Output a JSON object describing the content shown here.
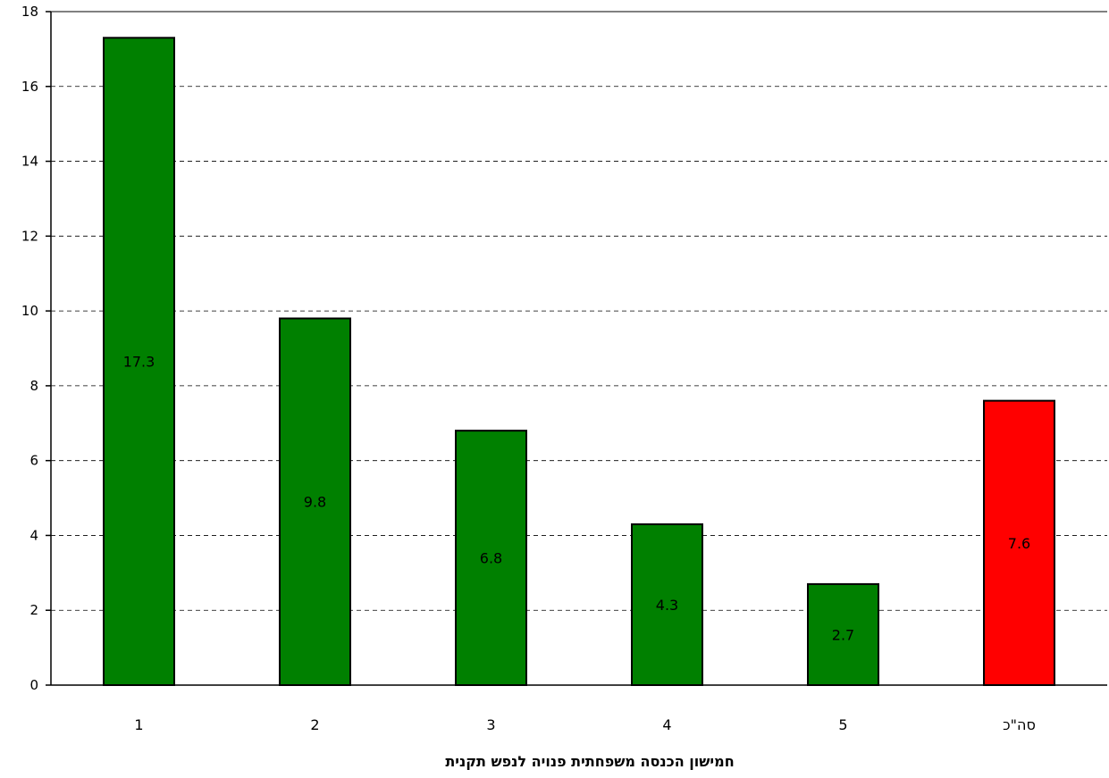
{
  "chart_data": {
    "type": "bar",
    "categories": [
      "1",
      "2",
      "3",
      "4",
      "5",
      "סה\"כ"
    ],
    "values": [
      17.3,
      9.8,
      6.8,
      4.3,
      2.7,
      7.6
    ],
    "data_labels": [
      "17.3",
      "9.8",
      "6.8",
      "4.3",
      "2.7",
      "7.6"
    ],
    "bar_colors": [
      "#008000",
      "#008000",
      "#008000",
      "#008000",
      "#008000",
      "#ff0000"
    ],
    "xlabel": "חמישון הכנסה משפחתית פנויה לנפש תקנית",
    "ylabel": "",
    "ylim": [
      0,
      18
    ],
    "yticks": [
      0,
      2,
      4,
      6,
      8,
      10,
      12,
      14,
      16,
      18
    ],
    "grid": true,
    "legend": "none"
  }
}
